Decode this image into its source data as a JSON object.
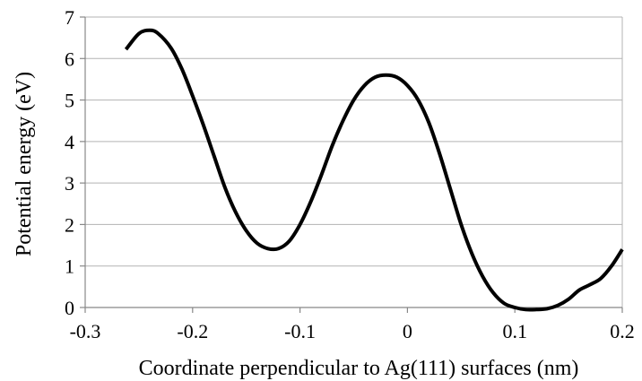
{
  "chart_data": {
    "type": "line",
    "title": "",
    "xlabel": "Coordinate perpendicular to Ag(111) surfaces (nm)",
    "ylabel": "Potential energy (eV)",
    "xlim": [
      -0.3,
      0.2
    ],
    "ylim": [
      0,
      7
    ],
    "xticks": [
      "-0.3",
      "-0.2",
      "-0.1",
      "0",
      "0.1",
      "0.2"
    ],
    "yticks": [
      "0",
      "1",
      "2",
      "3",
      "4",
      "5",
      "6",
      "7"
    ],
    "grid": "horizontal",
    "legend": "none",
    "line_color": "#000000",
    "grid_color": "#b3b3b3",
    "series": [
      {
        "x": [
          -0.262,
          -0.25,
          -0.24,
          -0.232,
          -0.22,
          -0.21,
          -0.2,
          -0.19,
          -0.18,
          -0.17,
          -0.16,
          -0.15,
          -0.14,
          -0.13,
          -0.12,
          -0.11,
          -0.1,
          -0.09,
          -0.08,
          -0.07,
          -0.06,
          -0.05,
          -0.04,
          -0.03,
          -0.02,
          -0.01,
          0.0,
          0.01,
          0.02,
          0.03,
          0.04,
          0.05,
          0.06,
          0.07,
          0.08,
          0.09,
          0.1,
          0.11,
          0.12,
          0.13,
          0.14,
          0.15,
          0.16,
          0.17,
          0.18,
          0.19,
          0.2
        ],
        "y": [
          6.22,
          6.6,
          6.68,
          6.6,
          6.25,
          5.75,
          5.1,
          4.4,
          3.65,
          2.9,
          2.3,
          1.85,
          1.55,
          1.42,
          1.42,
          1.6,
          2.0,
          2.55,
          3.2,
          3.9,
          4.5,
          5.0,
          5.35,
          5.55,
          5.6,
          5.55,
          5.35,
          5.0,
          4.45,
          3.7,
          2.85,
          2.0,
          1.3,
          0.75,
          0.35,
          0.1,
          0.0,
          -0.05,
          -0.05,
          -0.03,
          0.05,
          0.2,
          0.42,
          0.55,
          0.7,
          1.0,
          1.4
        ]
      }
    ]
  }
}
